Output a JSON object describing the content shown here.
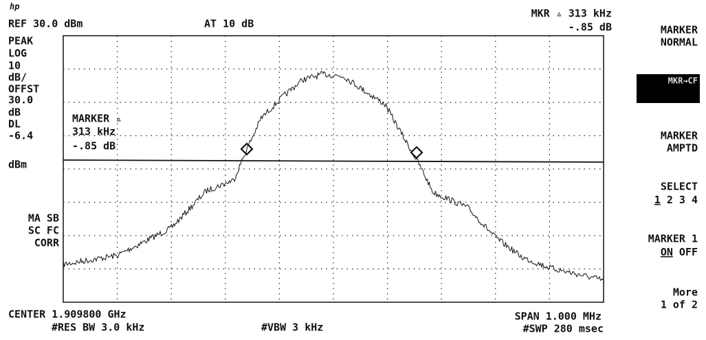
{
  "header": {
    "logo": "hp",
    "ref": "REF 30.0 dBm",
    "atten": "AT 10 dB",
    "marker_line1": "MKR ▵ 313 kHz",
    "marker_line2": "-.85 dB"
  },
  "left_panel": [
    "PEAK",
    "LOG",
    "10",
    "dB/",
    "OFFST",
    "30.0",
    "dB",
    "DL",
    "-6.4",
    "dBm"
  ],
  "status": [
    "MA SB",
    "SC FC",
    "CORR"
  ],
  "marker_box": [
    "MARKER ▵",
    "313 kHz",
    "-.85 dB"
  ],
  "footer": {
    "center": "CENTER 1.909800 GHz",
    "res_bw": "#RES BW 3.0 kHz",
    "vbw": "#VBW 3 kHz",
    "span": "SPAN 1.000 MHz",
    "sweep": "#SWP 280 msec"
  },
  "softkeys": [
    {
      "line1": "MARKER",
      "line2": "NORMAL"
    },
    {
      "line1": "MKR→CF",
      "line2": ""
    },
    {
      "line1": "MARKER",
      "line2": "AMPTD"
    },
    {
      "line1": "SELECT",
      "sel": "1",
      "rest": " 2 3 4"
    },
    {
      "line1": "MARKER 1",
      "on": "ON",
      "off": " OFF"
    },
    {
      "line1": "More",
      "line2": "1 of 2"
    }
  ]
}
